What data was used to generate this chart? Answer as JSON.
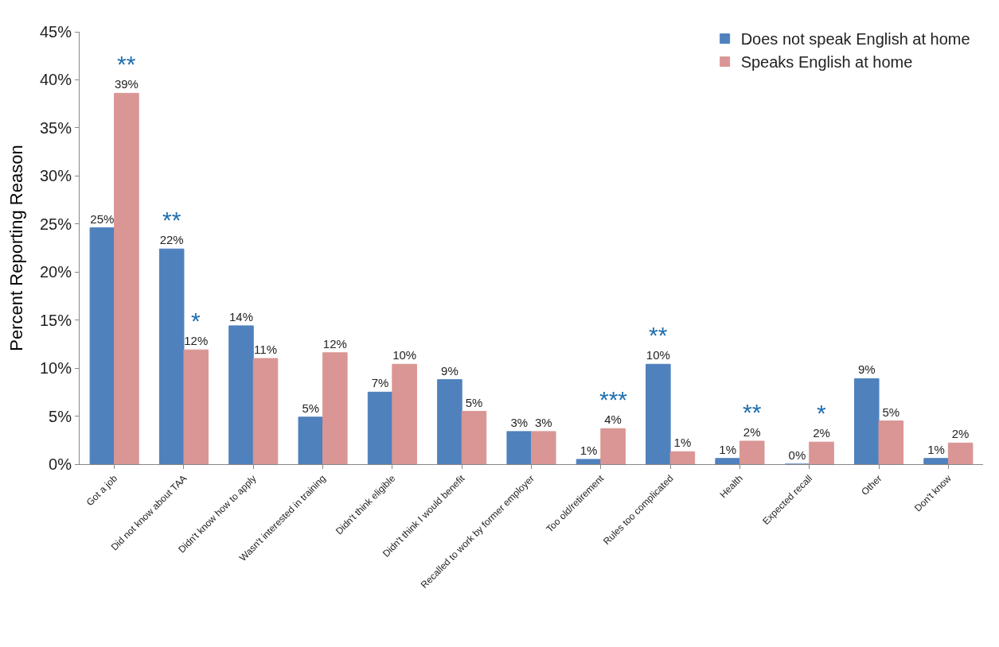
{
  "chart_data": {
    "type": "bar",
    "ylabel": "Percent Reporting Reason",
    "categories": [
      "Got a job",
      "Did not know about TAA",
      "Didn't know how to apply",
      "Wasn't interested in training",
      "Didn't think eligible",
      "Didn't think I would benefit",
      "Recalled to work by former employer",
      "Too old/retirement",
      "Rules too complicated",
      "Health",
      "Expected recall",
      "Other",
      "Don't know"
    ],
    "series": [
      {
        "name": "Does not speak English at home",
        "color": "#4f81bd",
        "values": [
          24.6,
          22.4,
          14.4,
          4.9,
          7.5,
          8.8,
          3.4,
          0.5,
          10.4,
          0.6,
          0.0,
          8.9,
          0.6
        ],
        "value_labels": [
          "25%",
          "22%",
          "14%",
          "5%",
          "7%",
          "9%",
          "3%",
          "1%",
          "10%",
          "1%",
          "0%",
          "9%",
          "1%"
        ]
      },
      {
        "name": "Speaks English at home",
        "color": "#d99694",
        "values": [
          38.6,
          11.9,
          11.0,
          11.6,
          10.4,
          5.5,
          3.4,
          3.7,
          1.3,
          2.4,
          2.3,
          4.5,
          2.2
        ],
        "value_labels": [
          "39%",
          "12%",
          "11%",
          "12%",
          "10%",
          "5%",
          "3%",
          "4%",
          "1%",
          "2%",
          "2%",
          "5%",
          "2%"
        ]
      }
    ],
    "ylim": [
      0,
      45
    ],
    "yticks": [
      {
        "value": 0,
        "label": "0%"
      },
      {
        "value": 5,
        "label": "5%"
      },
      {
        "value": 10,
        "label": "10%"
      },
      {
        "value": 15,
        "label": "15%"
      },
      {
        "value": 20,
        "label": "20%"
      },
      {
        "value": 25,
        "label": "25%"
      },
      {
        "value": 30,
        "label": "30%"
      },
      {
        "value": 35,
        "label": "35%"
      },
      {
        "value": 40,
        "label": "40%"
      },
      {
        "value": 45,
        "label": "45%"
      }
    ],
    "annotations": [
      {
        "text": "**",
        "x": "Got a job",
        "y": 38.6
      },
      {
        "text": "**",
        "x": "Did not know about TAA",
        "y": 22.4
      },
      {
        "text": "*",
        "x": "Did not know about TAA",
        "y": 11.9
      },
      {
        "text": "***",
        "x": "Too old/retirement",
        "y": 3.7
      },
      {
        "text": "**",
        "x": "Rules too complicated",
        "y": 10.4
      },
      {
        "text": "**",
        "x": "Health",
        "y": 2.4
      },
      {
        "text": "*",
        "x": "Expected recall",
        "y": 2.3
      }
    ],
    "legend": "top right"
  }
}
